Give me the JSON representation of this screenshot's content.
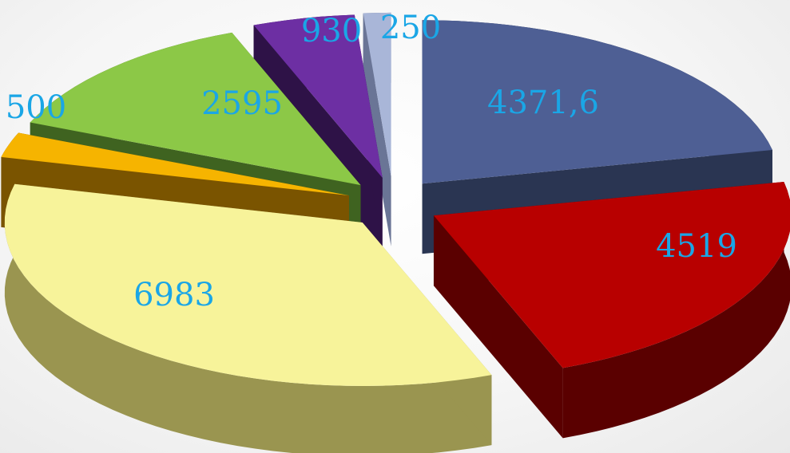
{
  "chart_data": {
    "type": "pie",
    "style": "3d-exploded",
    "title": "",
    "legend": "none",
    "start_angle_deg": 90,
    "direction": "clockwise",
    "slices": [
      {
        "label": "4371,6",
        "value": 4371.6,
        "color_top": "#4e5f94",
        "color_side": "#2a3552"
      },
      {
        "label": "4519",
        "value": 4519,
        "color_top": "#b80000",
        "color_side": "#5a0000"
      },
      {
        "label": "6983",
        "value": 6983,
        "color_top": "#f7f39a",
        "color_side": "#9a9550"
      },
      {
        "label": "500",
        "value": 500,
        "color_top": "#f6b400",
        "color_side": "#7a5400"
      },
      {
        "label": "2595",
        "value": 2595,
        "color_top": "#8cc847",
        "color_side": "#3f6320"
      },
      {
        "label": "930",
        "value": 930,
        "color_top": "#6d2fa3",
        "color_side": "#2e1247"
      },
      {
        "label": "250",
        "value": 250,
        "color_top": "#a9b6d8",
        "color_side": "#6a7596"
      }
    ],
    "label_color": "#1aa6e6"
  }
}
